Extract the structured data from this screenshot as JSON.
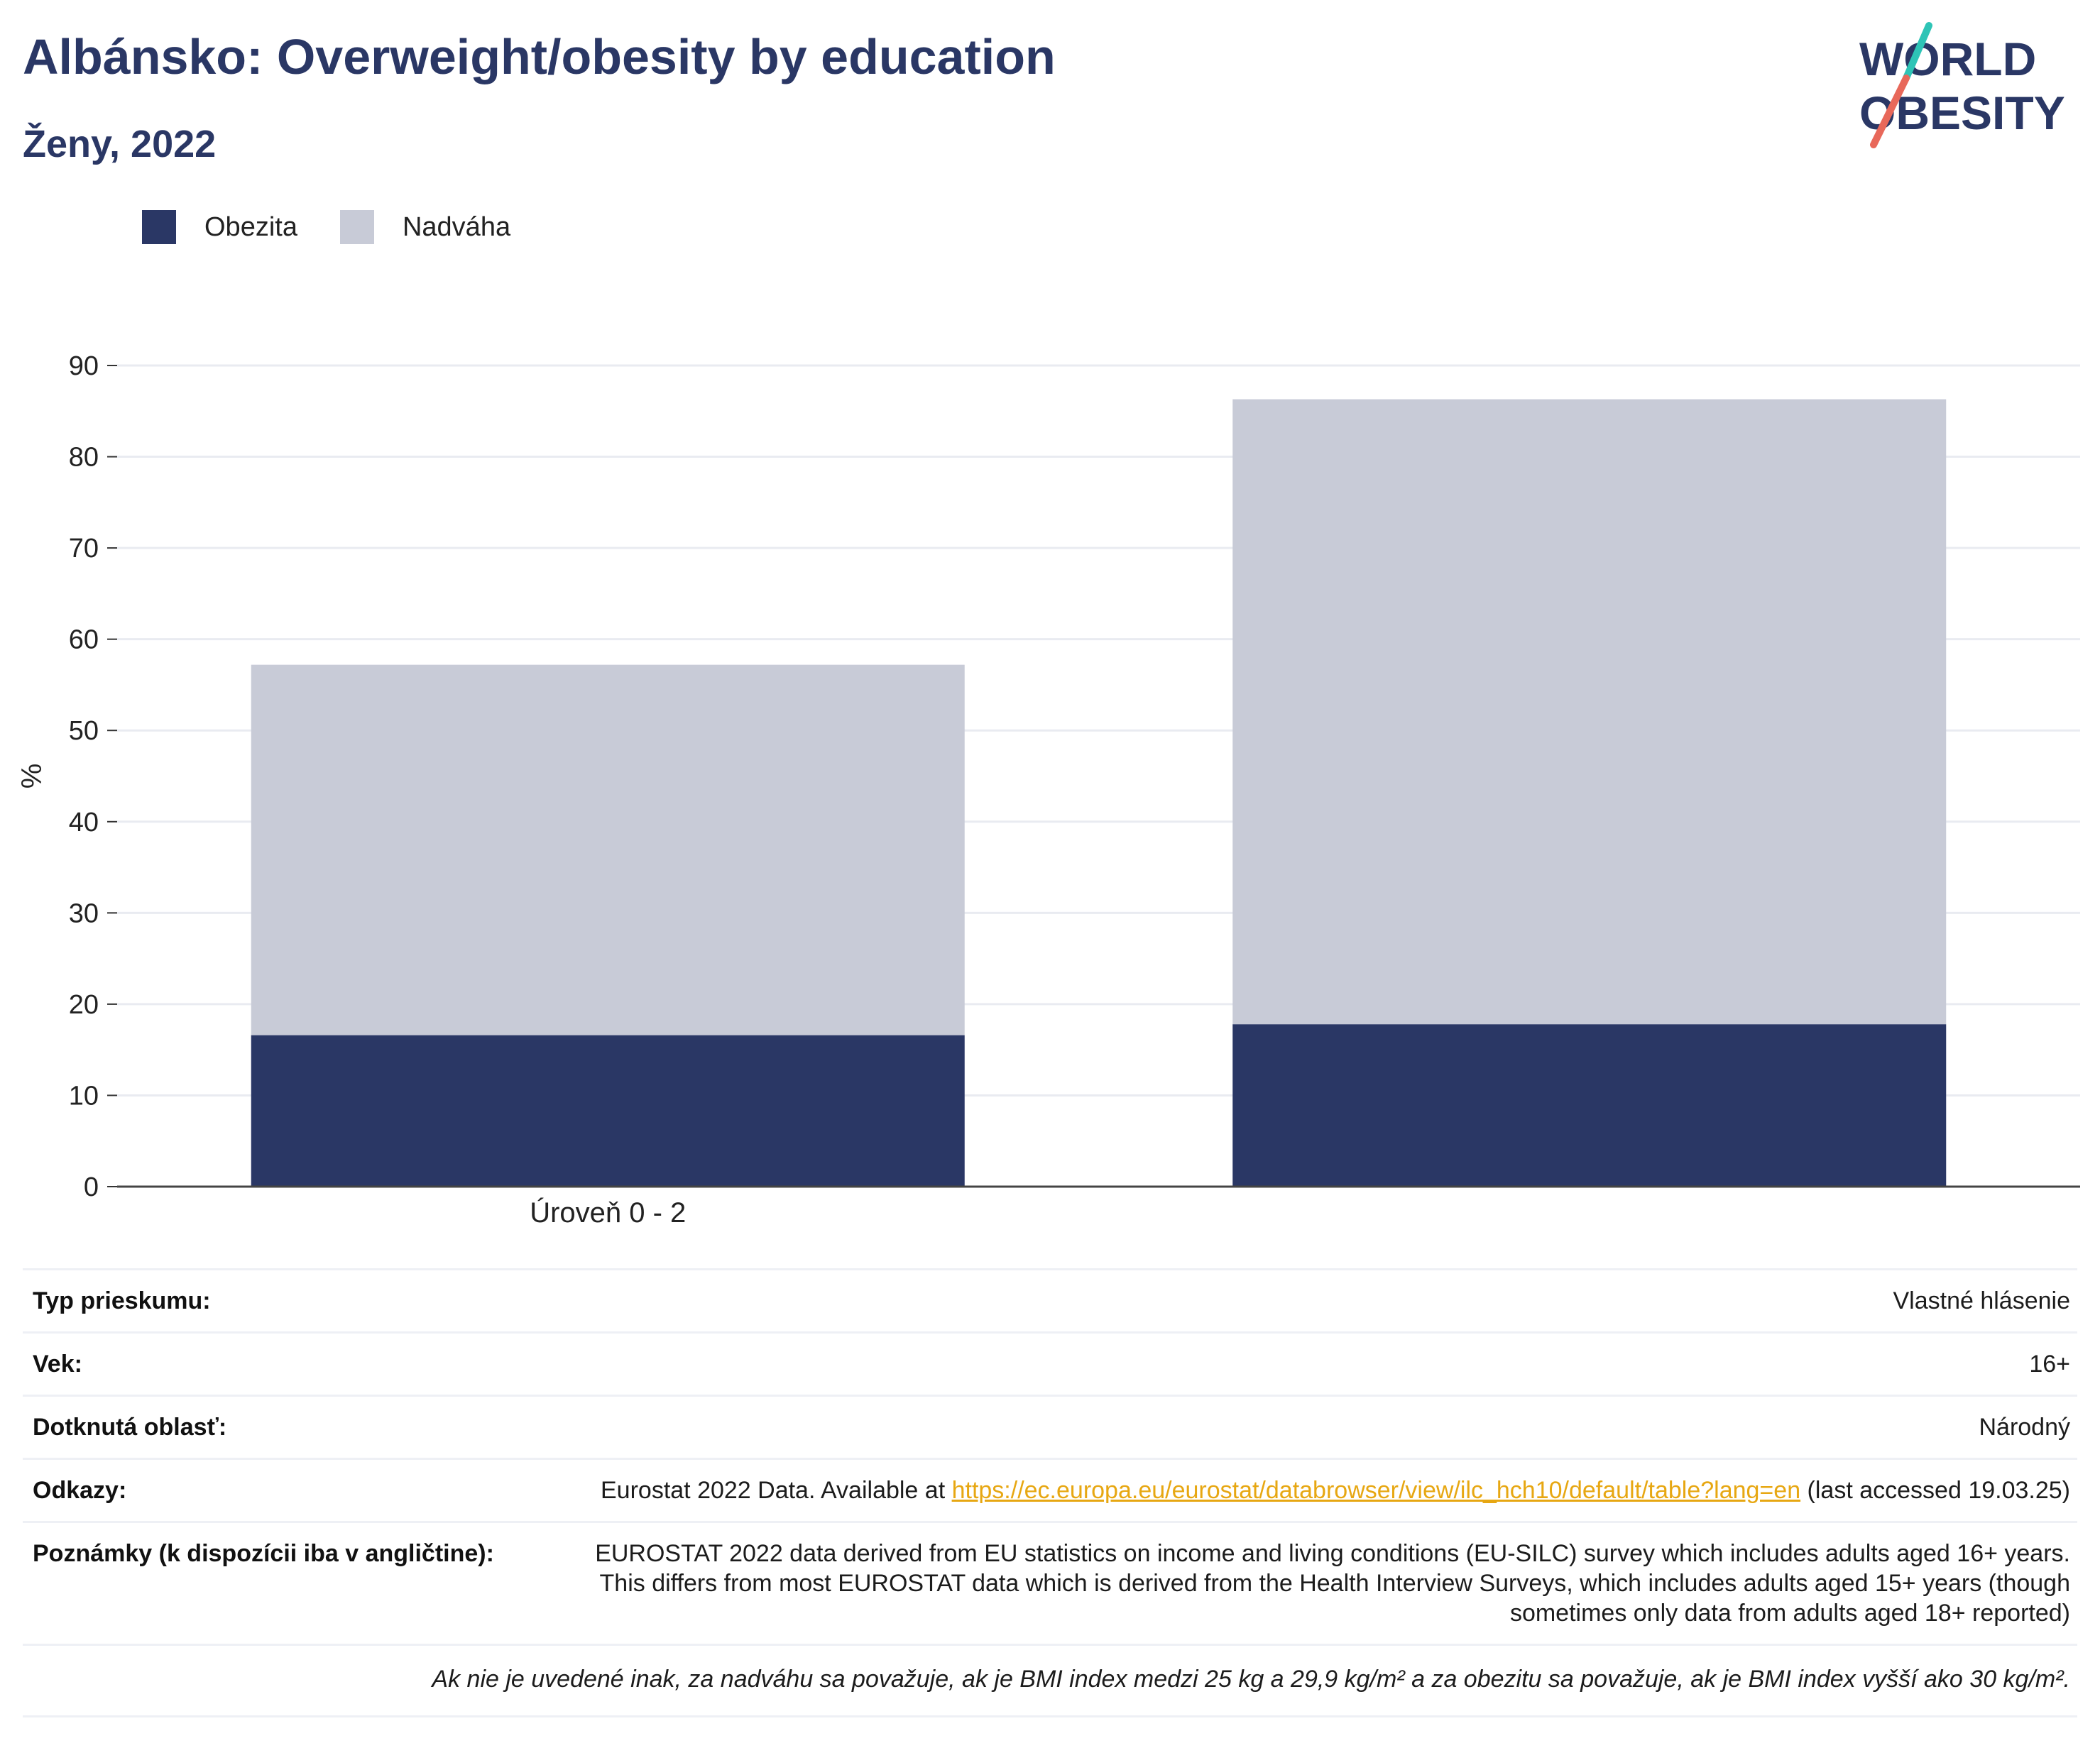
{
  "header": {
    "title": "Albánsko: Overweight/obesity by education",
    "subtitle": "Ženy, 2022"
  },
  "logo": {
    "line1": "WORLD",
    "line2": "OBESITY",
    "colors": {
      "text": "#2a3765",
      "slash_top": "#2ec4b6",
      "slash_bottom": "#e8685a"
    }
  },
  "legend": {
    "items": [
      {
        "label": "Obezita",
        "color": "#2a3765"
      },
      {
        "label": "Nadváha",
        "color": "#c8cbd7"
      }
    ]
  },
  "chart_data": {
    "type": "bar",
    "stacked": true,
    "categories": [
      "Úroveň 0 - 2",
      ""
    ],
    "series": [
      {
        "name": "Obezita",
        "color": "#2a3765",
        "values": [
          16.6,
          17.8
        ]
      },
      {
        "name": "Nadváha",
        "color": "#c8cbd7",
        "values": [
          40.6,
          68.5
        ]
      }
    ],
    "ylabel": "%",
    "xlabel": "",
    "ylim": [
      0,
      90
    ],
    "yticks": [
      0,
      10,
      20,
      30,
      40,
      50,
      60,
      70,
      80,
      90
    ],
    "grid": true,
    "legend_position": "top-left"
  },
  "info": {
    "rows": [
      {
        "label": "Typ prieskumu:",
        "value": "Vlastné hlásenie"
      },
      {
        "label": "Vek:",
        "value": "16+"
      },
      {
        "label": "Dotknutá oblasť:",
        "value": "Národný"
      }
    ],
    "references": {
      "label": "Odkazy:",
      "prefix": "Eurostat 2022 Data. Available at ",
      "link": "https://ec.europa.eu/eurostat/databrowser/view/ilc_hch10/default/table?lang=en",
      "suffix": " (last accessed 19.03.25)"
    },
    "notes": {
      "label": "Poznámky (k dispozícii iba v angličtine):",
      "value": "EUROSTAT 2022 data derived from EU statistics on income and living conditions (EU-SILC) survey which includes adults aged 16+ years. This differs from most EUROSTAT data which is derived from the Health Interview Surveys, which includes adults aged 15+ years (though sometimes only data from adults aged 18+ reported)"
    },
    "footnote": "Ak nie je uvedené inak, za nadváhu sa považuje, ak je BMI index medzi 25 kg a 29,9 kg/m² a za obezitu sa považuje, ak je BMI index vyšší ako 30 kg/m²."
  }
}
